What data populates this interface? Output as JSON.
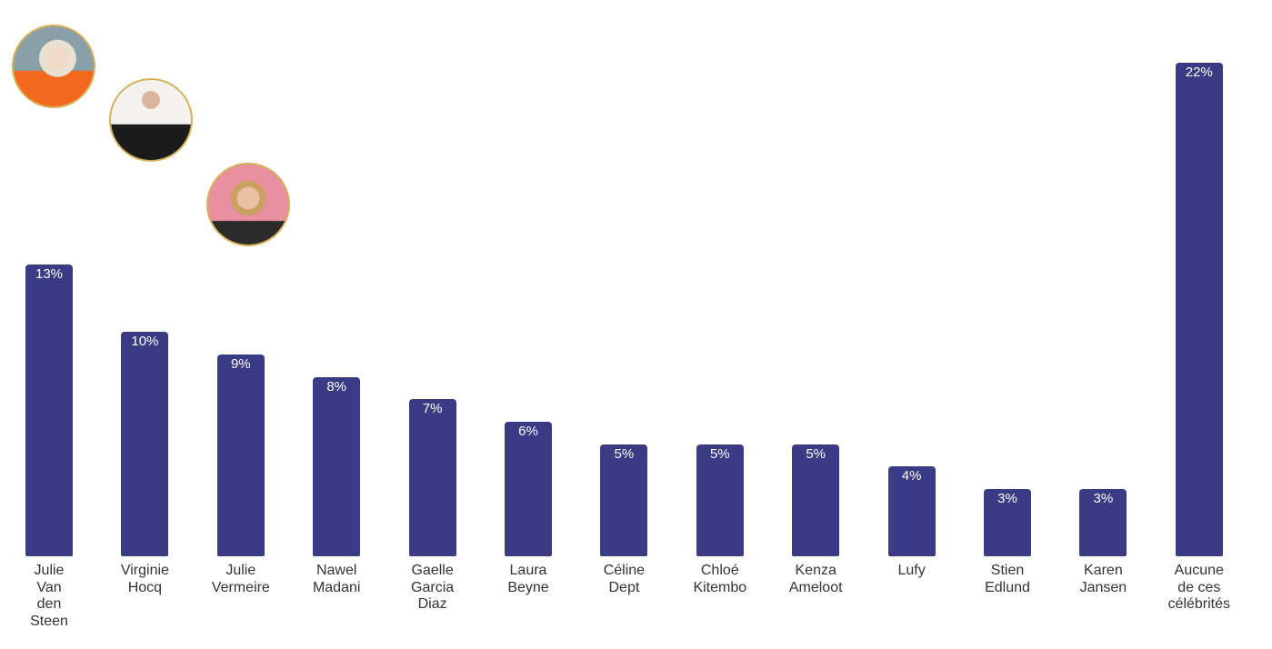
{
  "chart_data": {
    "type": "bar",
    "categories": [
      "Julie Van den Steen",
      "Virginie Hocq",
      "Julie Vermeire",
      "Nawel Madani",
      "Gaelle Garcia Diaz",
      "Laura Beyne",
      "Céline Dept",
      "Chloé Kitembo",
      "Kenza Ameloot",
      "Lufy",
      "Stien Edlund",
      "Karen Jansen",
      "Aucune de ces célébrités"
    ],
    "values": [
      13,
      10,
      9,
      8,
      7,
      6,
      5,
      5,
      5,
      4,
      3,
      3,
      22
    ],
    "value_labels": [
      "13%",
      "10%",
      "9%",
      "8%",
      "7%",
      "6%",
      "5%",
      "5%",
      "5%",
      "4%",
      "3%",
      "3%",
      "22%"
    ],
    "color": "#3b3a84"
  }
}
